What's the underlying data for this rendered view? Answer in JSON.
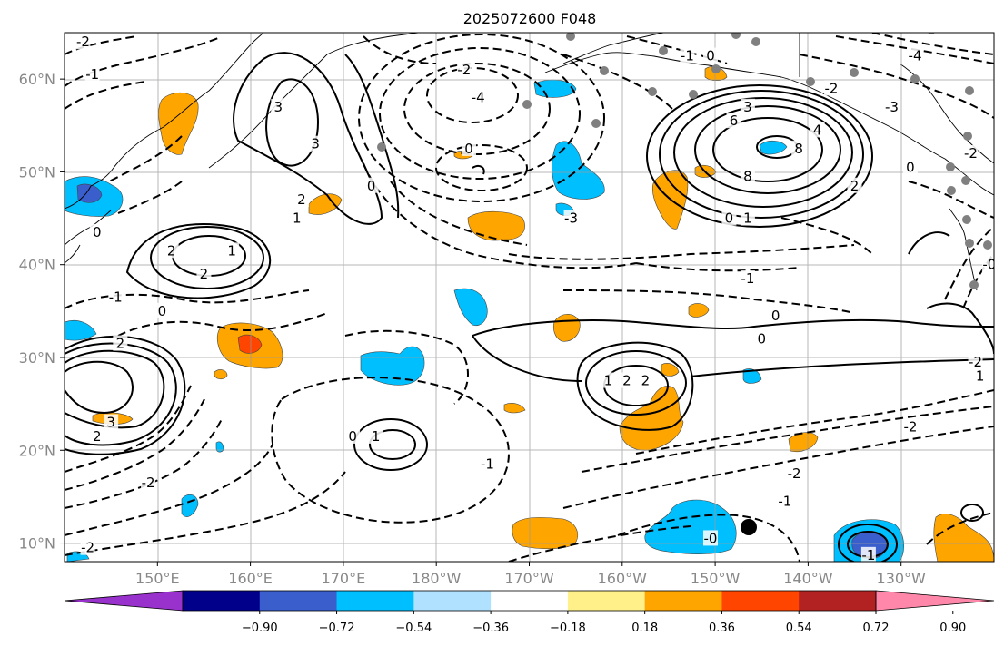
{
  "title": "2025072600 F048",
  "map": {
    "lon_ticks": [
      {
        "lon": 150,
        "label": "150°E"
      },
      {
        "lon": 160,
        "label": "160°E"
      },
      {
        "lon": 170,
        "label": "170°E"
      },
      {
        "lon": 180,
        "label": "180°W"
      },
      {
        "lon": 190,
        "label": "170°W"
      },
      {
        "lon": 200,
        "label": "160°W"
      },
      {
        "lon": 210,
        "label": "150°W"
      },
      {
        "lon": 220,
        "label": "140°W"
      },
      {
        "lon": 230,
        "label": "130°W"
      }
    ],
    "lat_ticks": [
      {
        "lat": 10,
        "label": "10°N"
      },
      {
        "lat": 20,
        "label": "20°N"
      },
      {
        "lat": 30,
        "label": "30°N"
      },
      {
        "lat": 40,
        "label": "40°N"
      },
      {
        "lat": 50,
        "label": "50°N"
      },
      {
        "lat": 60,
        "label": "60°N"
      }
    ],
    "extent": {
      "lon_min": 140,
      "lon_max": 240,
      "lat_min": 8,
      "lat_max": 65
    },
    "grid": true,
    "contour_labels": [
      {
        "text": "-2",
        "lon": 142,
        "lat": 64
      },
      {
        "text": "-1",
        "lon": 143,
        "lat": 60.5
      },
      {
        "text": "3",
        "lon": 163,
        "lat": 57
      },
      {
        "text": "3",
        "lon": 167,
        "lat": 53
      },
      {
        "text": "0",
        "lon": 173,
        "lat": 48.5
      },
      {
        "text": "2",
        "lon": 165.5,
        "lat": 47
      },
      {
        "text": "1",
        "lon": 165,
        "lat": 45
      },
      {
        "text": "2",
        "lon": 151.5,
        "lat": 41.5
      },
      {
        "text": "1",
        "lon": 158,
        "lat": 41.5
      },
      {
        "text": "2",
        "lon": 155,
        "lat": 39
      },
      {
        "text": "0",
        "lon": 150.5,
        "lat": 35
      },
      {
        "text": "0",
        "lon": 143.5,
        "lat": 43.5
      },
      {
        "text": "-1",
        "lon": 145.5,
        "lat": 36.5
      },
      {
        "text": "2",
        "lon": 146,
        "lat": 31.5
      },
      {
        "text": "3",
        "lon": 145,
        "lat": 23
      },
      {
        "text": "2",
        "lon": 143.5,
        "lat": 21.5
      },
      {
        "text": "-2",
        "lon": 149,
        "lat": 16.5
      },
      {
        "text": "-2",
        "lon": 142.5,
        "lat": 9.5
      },
      {
        "text": "-2",
        "lon": 183,
        "lat": 61
      },
      {
        "text": "-4",
        "lon": 184.5,
        "lat": 58
      },
      {
        "text": "0",
        "lon": 183.5,
        "lat": 52.5
      },
      {
        "text": "-3",
        "lon": 194.5,
        "lat": 45
      },
      {
        "text": "0",
        "lon": 171,
        "lat": 21.5
      },
      {
        "text": "1",
        "lon": 173.5,
        "lat": 21.5
      },
      {
        "text": "-1",
        "lon": 185.5,
        "lat": 18.5
      },
      {
        "text": "1",
        "lon": 198.5,
        "lat": 27.5
      },
      {
        "text": "2",
        "lon": 200.5,
        "lat": 27.5
      },
      {
        "text": "2",
        "lon": 202.5,
        "lat": 27.5
      },
      {
        "text": "-1",
        "lon": 207,
        "lat": 62.5
      },
      {
        "text": "0",
        "lon": 209.5,
        "lat": 62.5
      },
      {
        "text": "6",
        "lon": 212,
        "lat": 55.5
      },
      {
        "text": "3",
        "lon": 213.5,
        "lat": 57
      },
      {
        "text": "4",
        "lon": 221,
        "lat": 54.5
      },
      {
        "text": "8",
        "lon": 213.5,
        "lat": 49.5
      },
      {
        "text": "8",
        "lon": 219,
        "lat": 52.5
      },
      {
        "text": "0",
        "lon": 211.5,
        "lat": 45
      },
      {
        "text": "1",
        "lon": 213.5,
        "lat": 45
      },
      {
        "text": "2",
        "lon": 225,
        "lat": 48.5
      },
      {
        "text": "0",
        "lon": 231,
        "lat": 50.5
      },
      {
        "text": "-1",
        "lon": 213.5,
        "lat": 38.5
      },
      {
        "text": "0",
        "lon": 216.5,
        "lat": 34.5
      },
      {
        "text": "0",
        "lon": 215,
        "lat": 32
      },
      {
        "text": "-2",
        "lon": 222.5,
        "lat": 59
      },
      {
        "text": "-3",
        "lon": 229,
        "lat": 57
      },
      {
        "text": "-4",
        "lon": 231.5,
        "lat": 62.5
      },
      {
        "text": "-2",
        "lon": 237.5,
        "lat": 52
      },
      {
        "text": "-2",
        "lon": 238,
        "lat": 29.5
      },
      {
        "text": "1",
        "lon": 238.5,
        "lat": 28
      },
      {
        "text": "-2",
        "lon": 231,
        "lat": 22.5
      },
      {
        "text": "-2",
        "lon": 218.5,
        "lat": 17.5
      },
      {
        "text": "-1",
        "lon": 217.5,
        "lat": 14.5
      },
      {
        "text": "-0",
        "lon": 209.5,
        "lat": 10.5
      },
      {
        "text": "-1",
        "lon": 226.5,
        "lat": 8.7
      },
      {
        "text": "-0",
        "lon": 239.5,
        "lat": 40
      }
    ]
  },
  "colorbar": {
    "colors": [
      "#9932cc",
      "#00008b",
      "#3a5fcd",
      "#00bfff",
      "#b0e2ff",
      "#ffffff",
      "#fff08a",
      "#ffa500",
      "#ff4500",
      "#b22222",
      "#ff88aa"
    ],
    "ticks": [
      "−0.90",
      "−0.72",
      "−0.54",
      "−0.36",
      "−0.18",
      "0.18",
      "0.36",
      "0.54",
      "0.72",
      "0.90"
    ]
  }
}
